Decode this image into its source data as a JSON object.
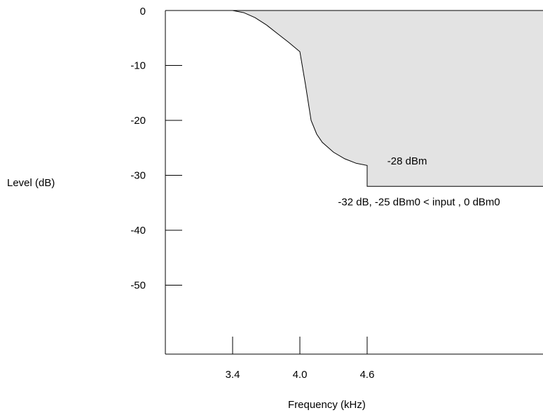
{
  "chart_data": {
    "type": "area",
    "title": "",
    "xlabel": "Frequency (kHz)",
    "ylabel": "Level (dB)",
    "xlim": [
      2.8,
      6.3
    ],
    "ylim": [
      -62,
      0
    ],
    "x_ticks": [
      3.4,
      4.0,
      4.6
    ],
    "x_tick_labels": [
      "3.4",
      "4.0",
      "4.6"
    ],
    "y_ticks": [
      0,
      -10,
      -20,
      -30,
      -40,
      -50
    ],
    "y_tick_labels": [
      "0",
      "-10",
      "-20",
      "-30",
      "-40",
      "-50"
    ],
    "grid": false,
    "legend": "none",
    "series": [
      {
        "x": [
          3.4,
          3.5,
          3.6,
          3.7,
          3.8,
          3.9,
          4.0,
          4.05,
          4.1,
          4.15,
          4.2,
          4.3,
          4.4,
          4.5,
          4.6,
          4.6,
          6.3
        ],
        "y": [
          0,
          -0.4,
          -1.3,
          -2.6,
          -4.2,
          -5.8,
          -7.5,
          -13.5,
          -20.0,
          -22.5,
          -24.0,
          -25.8,
          -27.0,
          -27.8,
          -28.2,
          -32,
          -32
        ]
      }
    ],
    "fill_color": "#e3e3e3",
    "annotations": [
      {
        "text": "-28 dBm",
        "x": 4.78,
        "y": -28
      },
      {
        "text": "-32 dB, -25 dBm0 < input , 0 dBm0",
        "x": 4.34,
        "y": -35.5
      }
    ]
  }
}
